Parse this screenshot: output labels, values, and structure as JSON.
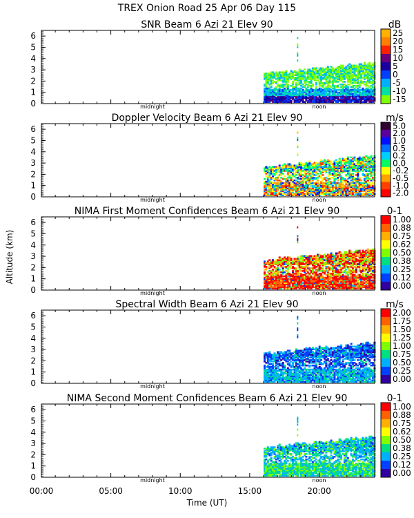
{
  "title": "TREX Onion Road  25 Apr 06 Day 115",
  "ylabel": "Altitude (km)",
  "xlabel": "Time (UT)",
  "time_ticks": [
    {
      "hour": 0,
      "label": "00:00"
    },
    {
      "hour": 5,
      "label": "05:00"
    },
    {
      "hour": 10,
      "label": "10:00"
    },
    {
      "hour": 15,
      "label": "15:00"
    },
    {
      "hour": 20,
      "label": "20:00"
    }
  ],
  "chart_data": [
    {
      "type": "heatmap",
      "id": "snr",
      "title": "SNR Beam 6 Azi  21 Elev 90",
      "units": "dB",
      "ylim": [
        0,
        6.5
      ],
      "yticks": [
        "0",
        "1",
        "2",
        "3",
        "4",
        "5",
        "6"
      ],
      "xlim_hours": [
        0,
        24
      ],
      "data_start_hour": 16.0,
      "top_height_km": [
        2.6,
        3.6
      ],
      "markers": [
        {
          "hour": 8.0,
          "label": "midnight"
        },
        {
          "hour": 20.0,
          "label": "noon"
        }
      ],
      "colorbar_labels": [
        "25",
        "20",
        "15",
        "10",
        "5",
        "0",
        "-5",
        "-10",
        "-15"
      ],
      "colorbar_colors": [
        "#ffb000",
        "#ff8000",
        "#ff2000",
        "#6a007a",
        "#1a00a0",
        "#0040ff",
        "#00b0ff",
        "#00e0a0",
        "#80ff00"
      ],
      "field": "snr"
    },
    {
      "type": "heatmap",
      "id": "doppler",
      "title": "Doppler Velocity Beam 6 Azi  21 Elev 90",
      "units": "m/s",
      "ylim": [
        0,
        6.5
      ],
      "yticks": [
        "0",
        "1",
        "2",
        "3",
        "4",
        "5",
        "6"
      ],
      "xlim_hours": [
        0,
        24
      ],
      "data_start_hour": 16.0,
      "top_height_km": [
        2.6,
        3.6
      ],
      "markers": [
        {
          "hour": 8.0,
          "label": "midnight"
        },
        {
          "hour": 20.0,
          "label": "noon"
        }
      ],
      "colorbar_labels": [
        "5.0",
        "2.0",
        "1.0",
        "0.5",
        "0.2",
        "0.0",
        "-0.2",
        "-0.5",
        "-1.0",
        "-2.0"
      ],
      "colorbar_colors": [
        "#300030",
        "#5a00a0",
        "#0010ff",
        "#0070ff",
        "#00d0ff",
        "#00ff60",
        "#ffff00",
        "#ffa000",
        "#ff4000",
        "#ff0000"
      ],
      "field": "doppler"
    },
    {
      "type": "heatmap",
      "id": "nima1",
      "title": "NIMA First Moment Confidences Beam 6 Azi  21 Elev 90",
      "units": "0-1",
      "ylim": [
        0,
        6.5
      ],
      "yticks": [
        "0",
        "1",
        "2",
        "3",
        "4",
        "5",
        "6"
      ],
      "xlim_hours": [
        0,
        24
      ],
      "data_start_hour": 16.0,
      "top_height_km": [
        2.6,
        3.6
      ],
      "markers": [
        {
          "hour": 8.0,
          "label": "midnight"
        },
        {
          "hour": 20.0,
          "label": "noon"
        }
      ],
      "colorbar_labels": [
        "1.00",
        "0.88",
        "0.75",
        "0.62",
        "0.50",
        "0.38",
        "0.25",
        "0.12",
        "0.00"
      ],
      "colorbar_colors": [
        "#ff0000",
        "#ff6000",
        "#ffb000",
        "#ffff00",
        "#80ff00",
        "#00e080",
        "#00b0ff",
        "#0040ff",
        "#3000a0"
      ],
      "field": "conf1"
    },
    {
      "type": "heatmap",
      "id": "width",
      "title": "Spectral Width Beam 6 Azi  21 Elev 90",
      "units": "m/s",
      "ylim": [
        0,
        6.5
      ],
      "yticks": [
        "0",
        "1",
        "2",
        "3",
        "4",
        "5",
        "6"
      ],
      "xlim_hours": [
        0,
        24
      ],
      "data_start_hour": 16.0,
      "top_height_km": [
        2.6,
        3.6
      ],
      "markers": [
        {
          "hour": 8.0,
          "label": "midnight"
        },
        {
          "hour": 20.0,
          "label": "noon"
        }
      ],
      "colorbar_labels": [
        "2.00",
        "1.75",
        "1.50",
        "1.25",
        "1.00",
        "0.75",
        "0.50",
        "0.25",
        "0.00"
      ],
      "colorbar_colors": [
        "#ff0000",
        "#ff6000",
        "#ffb000",
        "#ffff00",
        "#80ff00",
        "#00e080",
        "#00b0ff",
        "#0040ff",
        "#3000a0"
      ],
      "field": "width"
    },
    {
      "type": "heatmap",
      "id": "nima2",
      "title": "NIMA Second Moment Confidences Beam 6 Azi  21 Elev 90",
      "units": "0-1",
      "ylim": [
        0,
        6.5
      ],
      "yticks": [
        "0",
        "1",
        "2",
        "3",
        "4",
        "5",
        "6"
      ],
      "xlim_hours": [
        0,
        24
      ],
      "data_start_hour": 16.0,
      "top_height_km": [
        2.6,
        3.6
      ],
      "markers": [
        {
          "hour": 8.0,
          "label": "midnight"
        },
        {
          "hour": 20.0,
          "label": "noon"
        }
      ],
      "colorbar_labels": [
        "1.00",
        "0.88",
        "0.75",
        "0.62",
        "0.50",
        "0.38",
        "0.25",
        "0.12",
        "0.00"
      ],
      "colorbar_colors": [
        "#ff0000",
        "#ff6000",
        "#ffb000",
        "#ffff00",
        "#80ff00",
        "#00e080",
        "#00b0ff",
        "#0040ff",
        "#3000a0"
      ],
      "field": "conf2"
    }
  ]
}
